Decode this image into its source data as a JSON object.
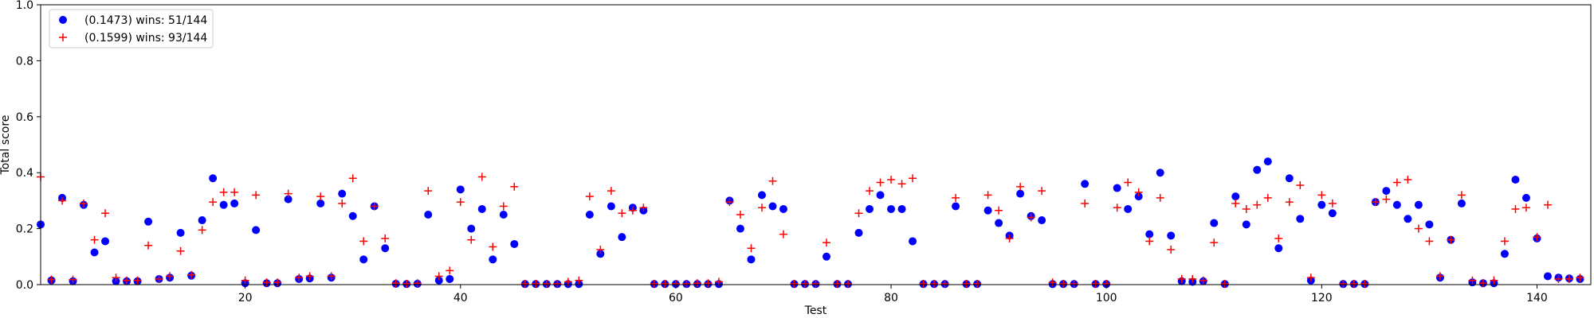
{
  "chart_data": {
    "type": "scatter",
    "title": "",
    "xlabel": "Test",
    "ylabel": "Total score",
    "xlim": [
      1,
      145
    ],
    "ylim": [
      0,
      1.0
    ],
    "xticks": [
      20,
      40,
      60,
      80,
      100,
      120,
      140
    ],
    "yticks": [
      0.0,
      0.2,
      0.4,
      0.6,
      0.8,
      1.0
    ],
    "xtick_labels": [
      "20",
      "40",
      "60",
      "80",
      "100",
      "120",
      "140"
    ],
    "ytick_labels": [
      "0.0",
      "0.2",
      "0.4",
      "0.6",
      "0.8",
      "1.0"
    ],
    "grid": false,
    "legend_position": "top-left",
    "series": [
      {
        "name": "(0.1473) wins: 51/144",
        "marker": "circle",
        "color": "#0000ff",
        "x": [
          1,
          2,
          3,
          4,
          5,
          6,
          7,
          8,
          9,
          10,
          11,
          12,
          13,
          14,
          15,
          16,
          17,
          18,
          19,
          20,
          21,
          22,
          23,
          24,
          25,
          26,
          27,
          28,
          29,
          30,
          31,
          32,
          33,
          34,
          35,
          36,
          37,
          38,
          39,
          40,
          41,
          42,
          43,
          44,
          45,
          46,
          47,
          48,
          49,
          50,
          51,
          52,
          53,
          54,
          55,
          56,
          57,
          58,
          59,
          60,
          61,
          62,
          63,
          64,
          65,
          66,
          67,
          68,
          69,
          70,
          71,
          72,
          73,
          74,
          75,
          76,
          77,
          78,
          79,
          80,
          81,
          82,
          83,
          84,
          85,
          86,
          87,
          88,
          89,
          90,
          91,
          92,
          93,
          94,
          95,
          96,
          97,
          98,
          99,
          100,
          101,
          102,
          103,
          104,
          105,
          106,
          107,
          108,
          109,
          110,
          111,
          112,
          113,
          114,
          115,
          116,
          117,
          118,
          119,
          120,
          121,
          122,
          123,
          124,
          125,
          126,
          127,
          128,
          129,
          130,
          131,
          132,
          133,
          134,
          135,
          136,
          137,
          138,
          139,
          140,
          141,
          142,
          143,
          144
        ],
        "y": [
          0.215,
          0.015,
          0.31,
          0.012,
          0.285,
          0.115,
          0.155,
          0.012,
          0.012,
          0.012,
          0.225,
          0.02,
          0.025,
          0.185,
          0.032,
          0.23,
          0.38,
          0.285,
          0.29,
          0.005,
          0.195,
          0.005,
          0.005,
          0.305,
          0.02,
          0.022,
          0.29,
          0.025,
          0.325,
          0.245,
          0.09,
          0.28,
          0.13,
          0.003,
          0.002,
          0.003,
          0.25,
          0.015,
          0.02,
          0.34,
          0.2,
          0.27,
          0.09,
          0.25,
          0.145,
          0.002,
          0.002,
          0.002,
          0.002,
          0.002,
          0.002,
          0.25,
          0.11,
          0.28,
          0.17,
          0.275,
          0.265,
          0.002,
          0.002,
          0.002,
          0.002,
          0.002,
          0.002,
          0.002,
          0.3,
          0.2,
          0.09,
          0.32,
          0.28,
          0.27,
          0.002,
          0.002,
          0.002,
          0.1,
          0.002,
          0.002,
          0.185,
          0.27,
          0.32,
          0.27,
          0.27,
          0.155,
          0.002,
          0.002,
          0.002,
          0.28,
          0.002,
          0.002,
          0.265,
          0.22,
          0.175,
          0.325,
          0.245,
          0.23,
          0.002,
          0.002,
          0.002,
          0.36,
          0.002,
          0.002,
          0.345,
          0.27,
          0.315,
          0.18,
          0.4,
          0.175,
          0.012,
          0.01,
          0.012,
          0.22,
          0.002,
          0.315,
          0.215,
          0.41,
          0.44,
          0.13,
          0.38,
          0.235,
          0.015,
          0.285,
          0.255,
          0.002,
          0.002,
          0.002,
          0.295,
          0.335,
          0.285,
          0.235,
          0.285,
          0.215,
          0.025,
          0.16,
          0.29,
          0.008,
          0.005,
          0.005,
          0.11,
          0.375,
          0.31,
          0.165,
          0.03,
          0.025,
          0.022,
          0.02
        ]
      },
      {
        "name": "(0.1599) wins: 93/144",
        "marker": "plus",
        "color": "#ff0000",
        "x": [
          1,
          2,
          3,
          4,
          5,
          6,
          7,
          8,
          9,
          10,
          11,
          12,
          13,
          14,
          15,
          16,
          17,
          18,
          19,
          20,
          21,
          22,
          23,
          24,
          25,
          26,
          27,
          28,
          29,
          30,
          31,
          32,
          33,
          34,
          35,
          36,
          37,
          38,
          39,
          40,
          41,
          42,
          43,
          44,
          45,
          46,
          47,
          48,
          49,
          50,
          51,
          52,
          53,
          54,
          55,
          56,
          57,
          58,
          59,
          60,
          61,
          62,
          63,
          64,
          65,
          66,
          67,
          68,
          69,
          70,
          71,
          72,
          73,
          74,
          75,
          76,
          77,
          78,
          79,
          80,
          81,
          82,
          83,
          84,
          85,
          86,
          87,
          88,
          89,
          90,
          91,
          92,
          93,
          94,
          95,
          96,
          97,
          98,
          99,
          100,
          101,
          102,
          103,
          104,
          105,
          106,
          107,
          108,
          109,
          110,
          111,
          112,
          113,
          114,
          115,
          116,
          117,
          118,
          119,
          120,
          121,
          122,
          123,
          124,
          125,
          126,
          127,
          128,
          129,
          130,
          131,
          132,
          133,
          134,
          135,
          136,
          137,
          138,
          139,
          140,
          141,
          142,
          143,
          144
        ],
        "y": [
          0.385,
          0.018,
          0.3,
          0.018,
          0.29,
          0.16,
          0.255,
          0.025,
          0.015,
          0.015,
          0.14,
          0.02,
          0.03,
          0.12,
          0.035,
          0.195,
          0.295,
          0.33,
          0.33,
          0.015,
          0.32,
          0.008,
          0.008,
          0.325,
          0.025,
          0.03,
          0.315,
          0.03,
          0.29,
          0.38,
          0.155,
          0.28,
          0.165,
          0.005,
          0.003,
          0.005,
          0.335,
          0.03,
          0.05,
          0.295,
          0.16,
          0.385,
          0.135,
          0.28,
          0.35,
          0.003,
          0.003,
          0.003,
          0.003,
          0.01,
          0.015,
          0.315,
          0.125,
          0.335,
          0.255,
          0.265,
          0.275,
          0.003,
          0.003,
          0.003,
          0.003,
          0.005,
          0.005,
          0.01,
          0.295,
          0.25,
          0.13,
          0.275,
          0.37,
          0.18,
          0.003,
          0.003,
          0.003,
          0.15,
          0.003,
          0.003,
          0.255,
          0.335,
          0.365,
          0.375,
          0.36,
          0.38,
          0.003,
          0.003,
          0.003,
          0.31,
          0.003,
          0.003,
          0.32,
          0.265,
          0.165,
          0.35,
          0.24,
          0.335,
          0.008,
          0.003,
          0.003,
          0.29,
          0.003,
          0.003,
          0.275,
          0.365,
          0.33,
          0.155,
          0.31,
          0.125,
          0.02,
          0.02,
          0.015,
          0.15,
          0.003,
          0.29,
          0.27,
          0.285,
          0.31,
          0.165,
          0.295,
          0.355,
          0.025,
          0.32,
          0.29,
          0.003,
          0.003,
          0.003,
          0.295,
          0.305,
          0.365,
          0.375,
          0.2,
          0.155,
          0.03,
          0.16,
          0.32,
          0.015,
          0.005,
          0.015,
          0.155,
          0.27,
          0.275,
          0.17,
          0.285,
          0.02,
          0.02,
          0.025
        ]
      }
    ]
  }
}
